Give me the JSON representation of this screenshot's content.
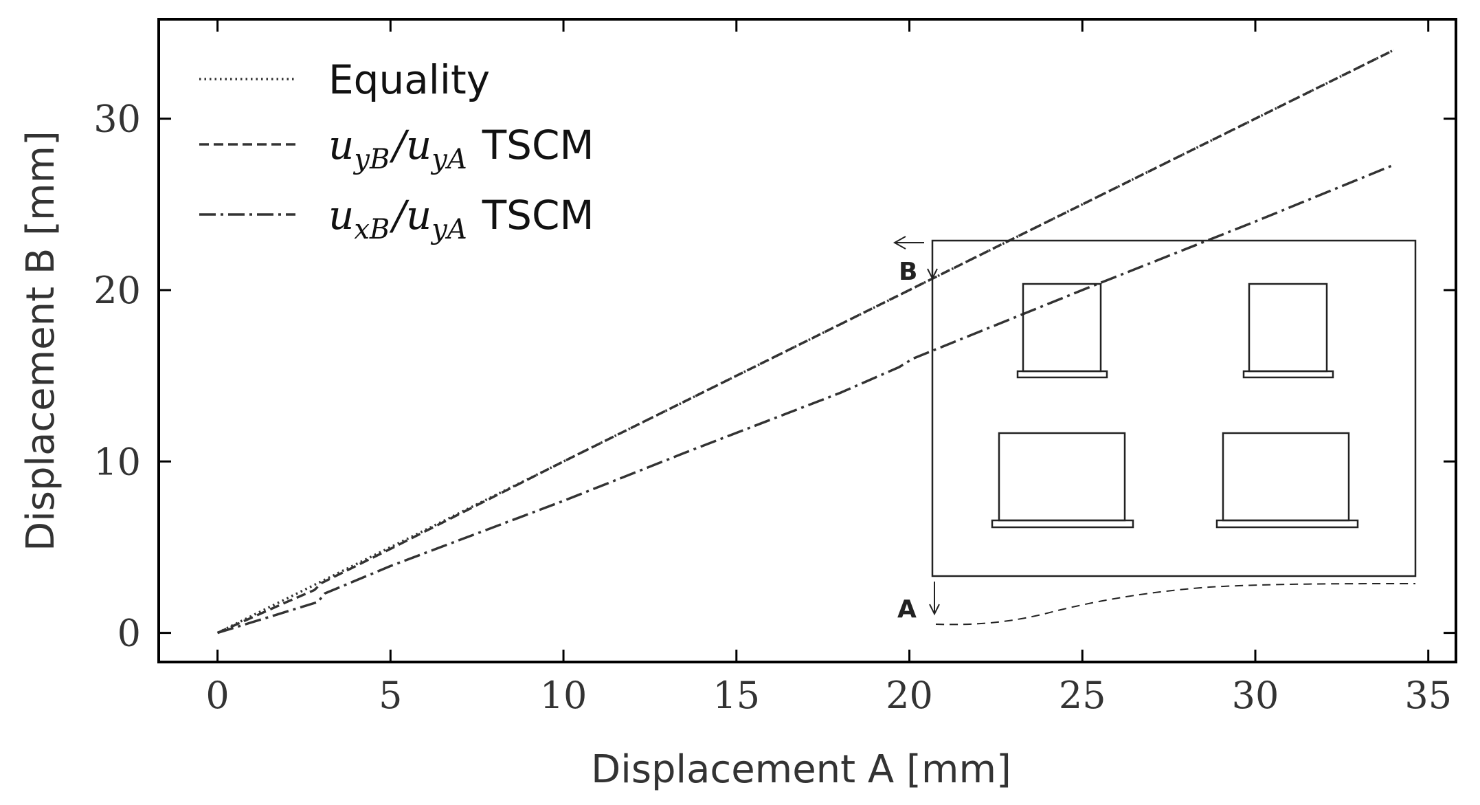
{
  "chart_data": {
    "type": "line",
    "title": "",
    "xlabel": "Displacement A [mm]",
    "ylabel": "Displacement B [mm]",
    "xlim": [
      -1.7,
      35.8
    ],
    "ylim": [
      -1.7,
      35.8
    ],
    "xticks": [
      0,
      5,
      10,
      15,
      20,
      25,
      30,
      35
    ],
    "yticks": [
      0,
      10,
      20,
      30
    ],
    "xtick_labels": [
      "0",
      "5",
      "10",
      "15",
      "20",
      "25",
      "30",
      "35"
    ],
    "ytick_labels": [
      "0",
      "10",
      "20",
      "30"
    ],
    "grid": false,
    "legend_position": "top-left",
    "series": [
      {
        "name": "Equality",
        "style": "dotted",
        "x": [
          0,
          34
        ],
        "y": [
          0,
          34
        ]
      },
      {
        "name": "u_yB/u_yA TSCM",
        "style": "dashed",
        "x": [
          0,
          2,
          2.8,
          3.0,
          5,
          10,
          15,
          20,
          25,
          30,
          34
        ],
        "y": [
          0,
          1.8,
          2.5,
          2.9,
          4.9,
          10.0,
          15.0,
          20.0,
          25.0,
          30.0,
          34.0
        ]
      },
      {
        "name": "u_xB/u_yA TSCM",
        "style": "dashdot",
        "x": [
          0,
          2.9,
          3.1,
          5,
          7.5,
          10,
          13.5,
          18,
          19.7,
          20.1,
          25,
          30,
          34
        ],
        "y": [
          0,
          1.8,
          2.3,
          3.9,
          5.8,
          7.7,
          10.5,
          14.0,
          15.5,
          16.0,
          20.0,
          24.0,
          27.3
        ]
      }
    ],
    "legend": {
      "entries": [
        {
          "text": "Equality"
        },
        {
          "math_base1": "u",
          "math_sub1": "yB",
          "math_base2": "u",
          "math_sub2": "yA",
          "suffix": "TSCM"
        },
        {
          "math_base1": "u",
          "math_sub1": "xB",
          "math_base2": "u",
          "math_sub2": "yA",
          "suffix": "TSCM"
        }
      ]
    },
    "inset": {
      "label_b": "B",
      "label_a": "A"
    }
  }
}
